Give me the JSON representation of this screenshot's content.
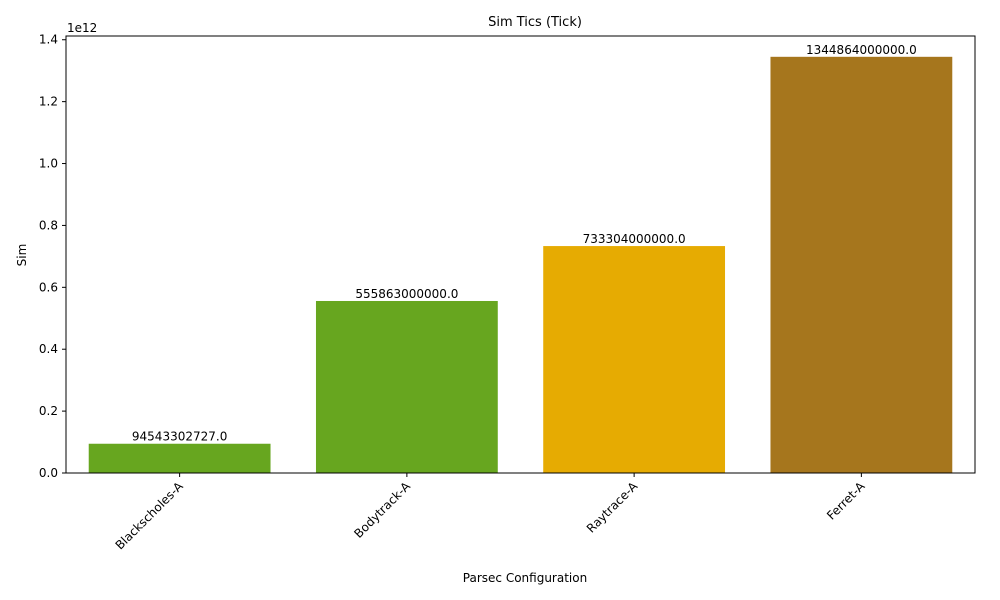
{
  "chart_data": {
    "type": "bar",
    "title": "Sim Tics (Tick)",
    "xlabel": "Parsec Configuration",
    "ylabel": "Sim",
    "categories": [
      "Blackscholes-A",
      "Bodytrack-A",
      "Raytrace-A",
      "Ferret-A"
    ],
    "values": [
      94543302727.0,
      555863000000.0,
      733304000000.0,
      1344864000000.0
    ],
    "data_labels": [
      "94543302727.0",
      "555863000000.0",
      "733304000000.0",
      "1344864000000.0"
    ],
    "colors": [
      "#67a61f",
      "#67a61f",
      "#e6ab02",
      "#a6761d"
    ],
    "ylim": [
      0,
      1412107200000
    ],
    "y_ticks": [
      0,
      200000000000,
      400000000000,
      600000000000,
      800000000000,
      1000000000000,
      1200000000000,
      1400000000000
    ],
    "y_tick_labels": [
      "0.0",
      "0.2",
      "0.4",
      "0.6",
      "0.8",
      "1.0",
      "1.2",
      "1.4"
    ],
    "y_offset_label": "1e12",
    "grid": false,
    "legend": "none"
  }
}
